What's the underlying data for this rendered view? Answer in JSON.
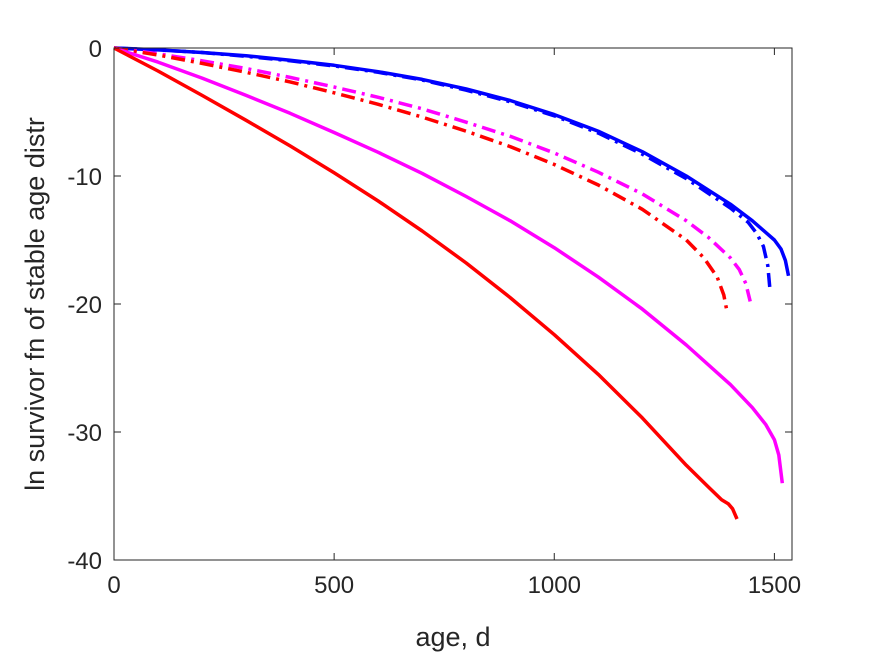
{
  "chart_data": {
    "type": "line",
    "title": "",
    "xlabel": "age, d",
    "ylabel": "ln survivor fn of stable age distr",
    "xlim": [
      0,
      1540
    ],
    "ylim": [
      -40,
      0
    ],
    "xticks": [
      0,
      500,
      1000,
      1500
    ],
    "yticks": [
      0,
      -10,
      -20,
      -30,
      -40
    ],
    "grid": false,
    "legend": "none",
    "series": [
      {
        "color": "#0000ff",
        "style": "solid",
        "x": [
          0,
          100,
          200,
          300,
          400,
          500,
          600,
          700,
          800,
          900,
          1000,
          1100,
          1200,
          1300,
          1400,
          1450,
          1480,
          1500,
          1515,
          1525,
          1532
        ],
        "y": [
          0,
          -0.15,
          -0.35,
          -0.6,
          -0.95,
          -1.35,
          -1.85,
          -2.45,
          -3.2,
          -4.1,
          -5.2,
          -6.5,
          -8.1,
          -10.0,
          -12.2,
          -13.5,
          -14.4,
          -15.0,
          -15.7,
          -16.6,
          -17.8
        ]
      },
      {
        "color": "#0000ff",
        "style": "dashdot",
        "x": [
          0,
          100,
          200,
          300,
          400,
          500,
          600,
          700,
          800,
          900,
          1000,
          1100,
          1200,
          1300,
          1400,
          1440,
          1460,
          1475,
          1485,
          1490
        ],
        "y": [
          0,
          -0.15,
          -0.35,
          -0.65,
          -1.0,
          -1.4,
          -1.9,
          -2.5,
          -3.3,
          -4.2,
          -5.3,
          -6.65,
          -8.3,
          -10.2,
          -12.5,
          -13.6,
          -14.5,
          -15.5,
          -17.0,
          -18.9
        ]
      },
      {
        "color": "#ff00ff",
        "style": "dashdot",
        "x": [
          0,
          100,
          200,
          300,
          400,
          500,
          600,
          700,
          800,
          900,
          1000,
          1100,
          1200,
          1300,
          1350,
          1400,
          1420,
          1435,
          1445
        ],
        "y": [
          0,
          -0.45,
          -1.0,
          -1.6,
          -2.3,
          -3.05,
          -3.85,
          -4.75,
          -5.8,
          -6.9,
          -8.2,
          -9.7,
          -11.4,
          -13.5,
          -14.8,
          -16.4,
          -17.3,
          -18.4,
          -19.8
        ]
      },
      {
        "color": "#ff0000",
        "style": "dashdot",
        "x": [
          0,
          100,
          200,
          300,
          400,
          500,
          600,
          700,
          800,
          900,
          1000,
          1100,
          1200,
          1300,
          1340,
          1370,
          1385,
          1392
        ],
        "y": [
          0,
          -0.55,
          -1.2,
          -1.9,
          -2.65,
          -3.5,
          -4.4,
          -5.4,
          -6.5,
          -7.7,
          -9.1,
          -10.7,
          -12.6,
          -15.0,
          -16.4,
          -17.9,
          -19.3,
          -20.5
        ]
      },
      {
        "color": "#ff00ff",
        "style": "solid",
        "x": [
          0,
          100,
          200,
          300,
          400,
          500,
          600,
          700,
          800,
          900,
          1000,
          1100,
          1200,
          1300,
          1400,
          1450,
          1480,
          1500,
          1510,
          1518
        ],
        "y": [
          0,
          -1.1,
          -2.35,
          -3.7,
          -5.1,
          -6.6,
          -8.15,
          -9.8,
          -11.6,
          -13.5,
          -15.6,
          -17.9,
          -20.4,
          -23.2,
          -26.3,
          -28.1,
          -29.4,
          -30.6,
          -31.8,
          -34.0
        ]
      },
      {
        "color": "#ff0000",
        "style": "solid",
        "x": [
          0,
          100,
          200,
          300,
          400,
          500,
          600,
          700,
          800,
          900,
          1000,
          1100,
          1200,
          1300,
          1350,
          1380,
          1395,
          1405,
          1415
        ],
        "y": [
          0,
          -1.8,
          -3.7,
          -5.65,
          -7.65,
          -9.75,
          -11.95,
          -14.3,
          -16.8,
          -19.5,
          -22.4,
          -25.5,
          -28.9,
          -32.6,
          -34.3,
          -35.3,
          -35.6,
          -36.0,
          -36.8
        ]
      }
    ]
  }
}
